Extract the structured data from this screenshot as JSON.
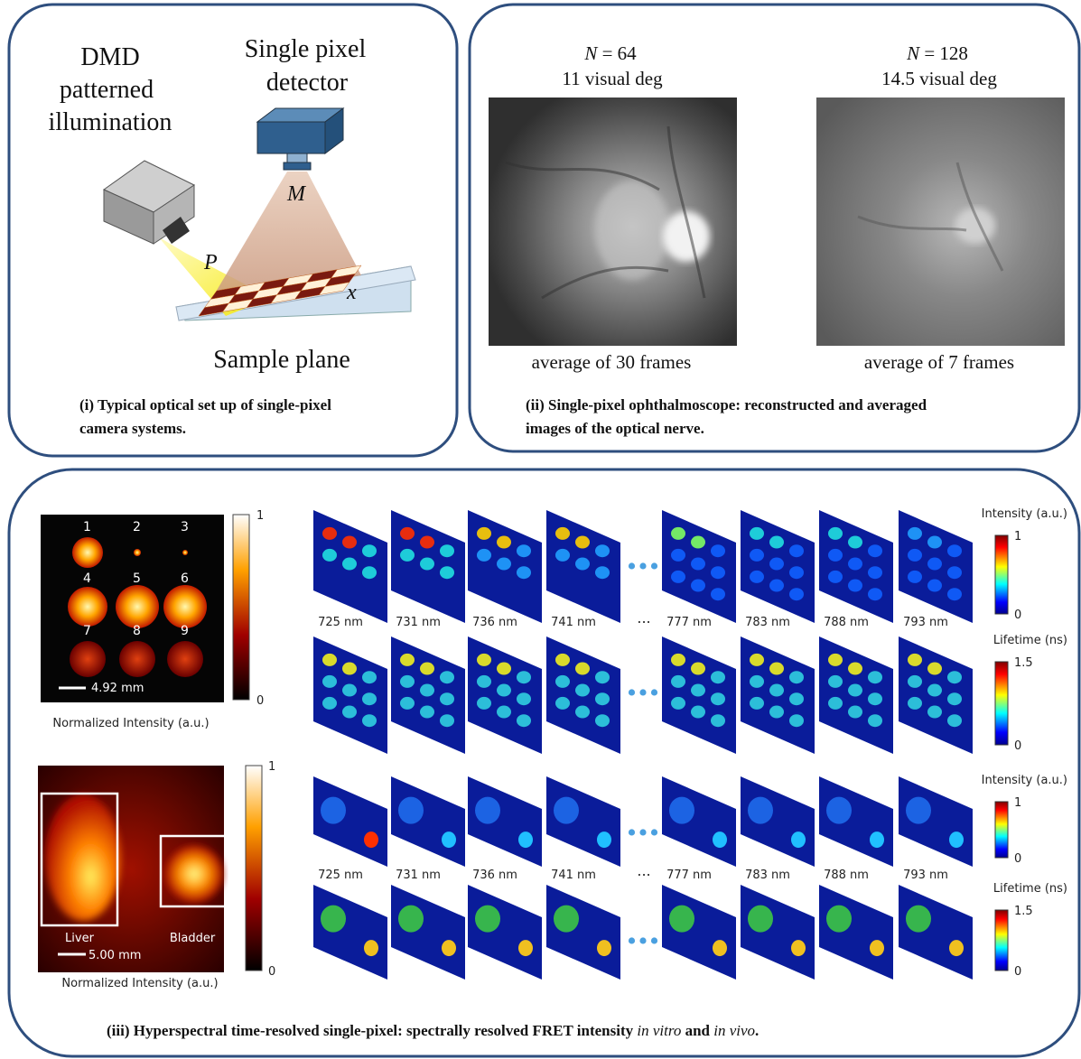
{
  "panel_i": {
    "illumination_label": [
      "DMD",
      "patterned",
      "illumination"
    ],
    "detector_label": [
      "Single pixel",
      "detector"
    ],
    "lens_label": "M",
    "projection_label": "P",
    "axis_label": "x",
    "sample_label": "Sample plane",
    "caption": [
      "(i) Typical optical set up of single-pixel",
      "camera systems."
    ]
  },
  "panel_ii": {
    "images": [
      {
        "symbol": "N",
        "size": "= 64",
        "field": "11 visual deg",
        "note": "average of 30 frames"
      },
      {
        "symbol": "N",
        "size": "= 128",
        "field": "14.5 visual deg",
        "note": "average of 7 frames"
      }
    ],
    "caption": [
      "(ii) Single-pixel ophthalmoscope: reconstructed and averaged",
      "images of the optical nerve."
    ]
  },
  "panel_iii": {
    "in_vitro": {
      "wells": [
        "1",
        "2",
        "3",
        "4",
        "5",
        "6",
        "7",
        "8",
        "9"
      ],
      "scale_bar": "4.92 mm",
      "map_label": "Normalized Intensity  (a.u.)",
      "map_bar": {
        "max": "1",
        "min": "0"
      },
      "wavelengths": [
        "725 nm",
        "731 nm",
        "736 nm",
        "741 nm",
        "777 nm",
        "783 nm",
        "788 nm",
        "793 nm"
      ],
      "ellipsis": "...",
      "intensity_bar": {
        "title": "Intensity (a.u.)",
        "max": "1",
        "min": "0"
      },
      "lifetime_bar": {
        "title": "Lifetime (ns)",
        "max": "1.5",
        "min": "0"
      }
    },
    "in_vivo": {
      "organs": [
        "Liver",
        "Bladder"
      ],
      "scale_bar": "5.00 mm",
      "map_label": "Normalized Intensity  (a.u.)",
      "map_bar": {
        "max": "1",
        "min": "0"
      },
      "wavelengths": [
        "725 nm",
        "731 nm",
        "736 nm",
        "741 nm",
        "777 nm",
        "783 nm",
        "788 nm",
        "793 nm"
      ],
      "ellipsis": "...",
      "intensity_bar": {
        "title": "Intensity (a.u.)",
        "max": "1",
        "min": "0"
      },
      "lifetime_bar": {
        "title": "Lifetime (ns)",
        "max": "1.5",
        "min": "0"
      }
    },
    "caption": [
      "(iii) Hyperspectral time-resolved single-pixel: spectrally resolved FRET intensity",
      "in vitro",
      "and",
      "in vivo",
      "."
    ]
  }
}
